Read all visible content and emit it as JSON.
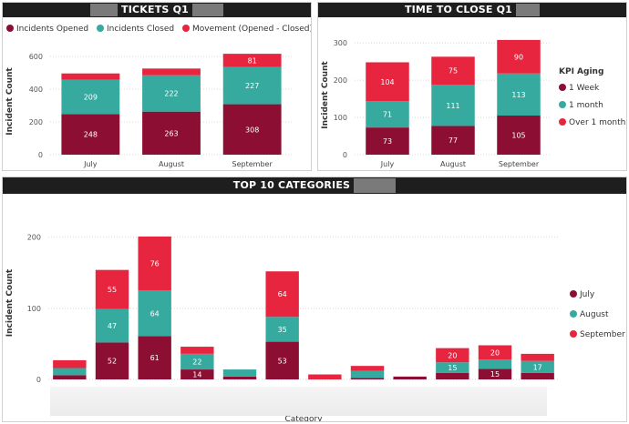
{
  "colors": {
    "july": "#8c0e32",
    "august": "#37aaa0",
    "september": "#e8253f",
    "grid": "#d9d9d9",
    "header_bg": "#1e1e1e"
  },
  "panels": {
    "tickets": {
      "title": "TICKETS Q1"
    },
    "ttc": {
      "title": "TIME TO CLOSE Q1"
    },
    "top10": {
      "title": "TOP 10 CATEGORIES"
    }
  },
  "chart_data": [
    {
      "type": "bar",
      "title": "TICKETS Q1",
      "stacked": true,
      "categories": [
        "July",
        "August",
        "September"
      ],
      "ylabel": "Incident Count",
      "ylim": [
        0,
        650
      ],
      "yticks": [
        0,
        200,
        400,
        600
      ],
      "legend_placement": "top",
      "series": [
        {
          "name": "Incidents Opened",
          "color": "#8c0e32",
          "values": [
            248,
            263,
            308
          ],
          "labels": [
            "248",
            "263",
            "308"
          ]
        },
        {
          "name": "Incidents Closed",
          "color": "#37aaa0",
          "values": [
            209,
            222,
            227
          ],
          "labels": [
            "209",
            "222",
            "227"
          ]
        },
        {
          "name": "Movement (Opened - Closed)",
          "color": "#e8253f",
          "values": [
            39,
            41,
            81
          ],
          "labels": [
            "",
            "",
            "81"
          ]
        }
      ]
    },
    {
      "type": "bar",
      "title": "TIME TO CLOSE Q1",
      "stacked": true,
      "categories": [
        "July",
        "August",
        "September"
      ],
      "ylabel": "Incident Count",
      "ylim": [
        0,
        320
      ],
      "yticks": [
        0,
        100,
        200,
        300
      ],
      "legend_title": "KPI Aging",
      "legend_placement": "right",
      "series": [
        {
          "name": "1 Week",
          "color": "#8c0e32",
          "values": [
            73,
            77,
            105
          ],
          "labels": [
            "73",
            "77",
            "105"
          ]
        },
        {
          "name": "1 month",
          "color": "#37aaa0",
          "values": [
            71,
            111,
            113
          ],
          "labels": [
            "71",
            "111",
            "113"
          ]
        },
        {
          "name": "Over 1 month",
          "color": "#e8253f",
          "values": [
            104,
            75,
            90
          ],
          "labels": [
            "104",
            "75",
            "90"
          ]
        }
      ]
    },
    {
      "type": "bar",
      "title": "TOP 10 CATEGORIES",
      "stacked": true,
      "categories": [
        "",
        "",
        "",
        "",
        "",
        "",
        "",
        "",
        "",
        "",
        "",
        ""
      ],
      "ylabel": "Incident Count",
      "xlabel": "Category",
      "ylim": [
        0,
        215
      ],
      "yticks": [
        0,
        100,
        200
      ],
      "legend_placement": "right",
      "series": [
        {
          "name": "July",
          "color": "#8c0e32",
          "values": [
            6,
            52,
            61,
            14,
            4,
            53,
            0,
            2,
            4,
            9,
            15,
            9
          ],
          "labels": [
            "",
            "52",
            "61",
            "14",
            "",
            "53",
            "",
            "",
            "",
            "",
            "15",
            ""
          ]
        },
        {
          "name": "August",
          "color": "#37aaa0",
          "values": [
            10,
            47,
            64,
            22,
            10,
            35,
            0,
            10,
            0,
            15,
            13,
            17
          ],
          "labels": [
            "",
            "47",
            "64",
            "22",
            "",
            "35",
            "",
            "",
            "",
            "15",
            "",
            "17"
          ]
        },
        {
          "name": "September",
          "color": "#e8253f",
          "values": [
            11,
            55,
            76,
            10,
            0,
            64,
            7,
            7,
            0,
            20,
            20,
            10
          ],
          "labels": [
            "",
            "55",
            "76",
            "",
            "",
            "64",
            "",
            "",
            "",
            "20",
            "20",
            ""
          ]
        }
      ]
    }
  ]
}
